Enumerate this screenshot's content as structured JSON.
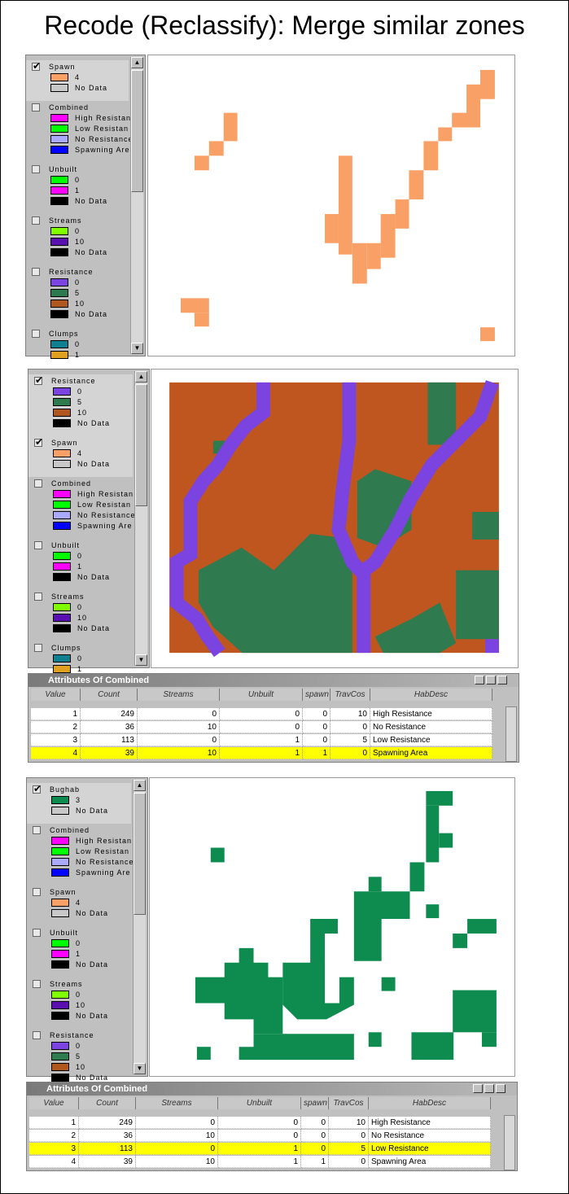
{
  "title": "Recode (Reclassify): Merge similar zones",
  "panels": [
    {
      "toc": [
        {
          "name": "Spawn",
          "checked": true,
          "items": [
            {
              "label": "4",
              "color": "#f9a066"
            },
            {
              "label": "No Data",
              "color": "#c8c8c8"
            }
          ]
        },
        {
          "name": "Combined",
          "checked": false,
          "items": [
            {
              "label": "High Resistan",
              "color": "#ff00ff"
            },
            {
              "label": "Low Resistan",
              "color": "#00ff00"
            },
            {
              "label": "No Resistance",
              "color": "#aaaaff"
            },
            {
              "label": "Spawning Area",
              "color": "#0000ff"
            }
          ]
        },
        {
          "name": "Unbuilt",
          "checked": false,
          "items": [
            {
              "label": "0",
              "color": "#00ff00"
            },
            {
              "label": "1",
              "color": "#ff00ff"
            },
            {
              "label": "No Data",
              "color": "#000000"
            }
          ]
        },
        {
          "name": "Streams",
          "checked": false,
          "items": [
            {
              "label": "0",
              "color": "#80ff00"
            },
            {
              "label": "10",
              "color": "#5a0fb0"
            },
            {
              "label": "No Data",
              "color": "#000000"
            }
          ]
        },
        {
          "name": "Resistance",
          "checked": false,
          "items": [
            {
              "label": "0",
              "color": "#7b43e0"
            },
            {
              "label": "5",
              "color": "#2f7a4f"
            },
            {
              "label": "10",
              "color": "#b0561f"
            },
            {
              "label": "No Data",
              "color": "#000000"
            }
          ]
        },
        {
          "name": "Clumps",
          "checked": false,
          "items": [
            {
              "label": "0",
              "color": "#108090"
            },
            {
              "label": "1",
              "color": "#e0a020"
            }
          ]
        }
      ]
    },
    {
      "toc": [
        {
          "name": "Resistance",
          "checked": true,
          "items": [
            {
              "label": "0",
              "color": "#7b43e0"
            },
            {
              "label": "5",
              "color": "#2f7a4f"
            },
            {
              "label": "10",
              "color": "#b0561f"
            },
            {
              "label": "No Data",
              "color": "#000000"
            }
          ]
        },
        {
          "name": "Spawn",
          "checked": true,
          "items": [
            {
              "label": "4",
              "color": "#f9a066"
            },
            {
              "label": "No Data",
              "color": "#c8c8c8"
            }
          ]
        },
        {
          "name": "Combined",
          "checked": false,
          "items": [
            {
              "label": "High Resistan",
              "color": "#ff00ff"
            },
            {
              "label": "Low Resistan",
              "color": "#00ff00"
            },
            {
              "label": "No Resistance",
              "color": "#aaaaff"
            },
            {
              "label": "Spawning Are",
              "color": "#0000ff"
            }
          ]
        },
        {
          "name": "Unbuilt",
          "checked": false,
          "items": [
            {
              "label": "0",
              "color": "#00ff00"
            },
            {
              "label": "1",
              "color": "#ff00ff"
            },
            {
              "label": "No Data",
              "color": "#000000"
            }
          ]
        },
        {
          "name": "Streams",
          "checked": false,
          "items": [
            {
              "label": "0",
              "color": "#80ff00"
            },
            {
              "label": "10",
              "color": "#5a0fb0"
            },
            {
              "label": "No Data",
              "color": "#000000"
            }
          ]
        },
        {
          "name": "Clumps",
          "checked": false,
          "items": [
            {
              "label": "0",
              "color": "#108090"
            },
            {
              "label": "1",
              "color": "#e0a020"
            }
          ]
        }
      ],
      "table": {
        "title": "Attributes Of Combined",
        "columns": [
          "Value",
          "Count",
          "Streams",
          "Unbuilt",
          "spawn",
          "TravCos",
          "HabDesc"
        ],
        "rows": [
          [
            1,
            249,
            0,
            0,
            0,
            10,
            "High Resistance"
          ],
          [
            2,
            36,
            10,
            0,
            0,
            0,
            "No Resistance"
          ],
          [
            3,
            113,
            0,
            1,
            0,
            5,
            "Low Resistance"
          ],
          [
            4,
            39,
            10,
            1,
            1,
            0,
            "Spawning Area"
          ]
        ]
      }
    },
    {
      "toc": [
        {
          "name": "Bughab",
          "checked": true,
          "items": [
            {
              "label": "3",
              "color": "#0e8c4f"
            },
            {
              "label": "No Data",
              "color": "#c8c8c8"
            }
          ]
        },
        {
          "name": "Combined",
          "checked": false,
          "items": [
            {
              "label": "High Resistan",
              "color": "#ff00ff"
            },
            {
              "label": "Low Resistan",
              "color": "#00ff00"
            },
            {
              "label": "No Resistance",
              "color": "#aaaaff"
            },
            {
              "label": "Spawning Are",
              "color": "#0000ff"
            }
          ]
        },
        {
          "name": "Spawn",
          "checked": false,
          "items": [
            {
              "label": "4",
              "color": "#f9a066"
            },
            {
              "label": "No Data",
              "color": "#c8c8c8"
            }
          ]
        },
        {
          "name": "Unbuilt",
          "checked": false,
          "items": [
            {
              "label": "0",
              "color": "#00ff00"
            },
            {
              "label": "1",
              "color": "#ff00ff"
            },
            {
              "label": "No Data",
              "color": "#000000"
            }
          ]
        },
        {
          "name": "Streams",
          "checked": false,
          "items": [
            {
              "label": "0",
              "color": "#80ff00"
            },
            {
              "label": "10",
              "color": "#5a0fb0"
            },
            {
              "label": "No Data",
              "color": "#000000"
            }
          ]
        },
        {
          "name": "Resistance",
          "checked": false,
          "items": [
            {
              "label": "0",
              "color": "#7b43e0"
            },
            {
              "label": "5",
              "color": "#2f7a4f"
            },
            {
              "label": "10",
              "color": "#b0561f"
            },
            {
              "label": "No Data",
              "color": "#000000"
            }
          ]
        }
      ],
      "table": {
        "title": "Attributes Of Combined",
        "columns": [
          "Value",
          "Count",
          "Streams",
          "Unbuilt",
          "spawn",
          "TravCos",
          "HabDesc"
        ],
        "rows": [
          [
            1,
            249,
            0,
            0,
            0,
            10,
            "High Resistance"
          ],
          [
            2,
            36,
            10,
            0,
            0,
            0,
            "No Resistance"
          ],
          [
            3,
            113,
            0,
            1,
            0,
            5,
            "Low Resistance"
          ],
          [
            4,
            39,
            10,
            1,
            1,
            0,
            "Spawning Area"
          ]
        ]
      }
    }
  ]
}
